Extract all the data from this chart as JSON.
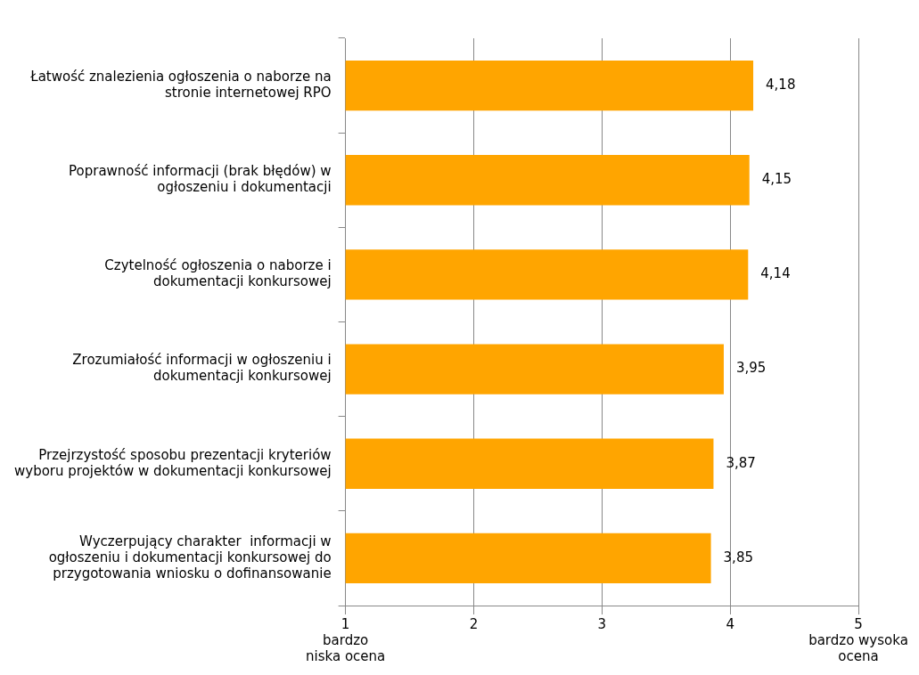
{
  "chart_data": {
    "type": "bar",
    "orientation": "horizontal",
    "categories": [
      "Łatwość znalezienia ogłoszenia o naborze na stronie internetowej RPO",
      "Poprawność informacji (brak błędów) w ogłoszeniu i dokumentacji",
      "Czytelność ogłoszenia o naborze i dokumentacji konkursowej",
      "Zrozumiałość informacji w ogłoszeniu i dokumentacji konkursowej",
      "Przejrzystość sposobu prezentacji kryteriów wyboru projektów w dokumentacji konkursowej",
      "Wyczerpujący charakter  informacji w ogłoszeniu i dokumentacji konkursowej do przygotowania wniosku o dofinansowanie"
    ],
    "values": [
      4.18,
      4.15,
      4.14,
      3.95,
      3.87,
      3.85
    ],
    "value_labels": [
      "4,18",
      "4,15",
      "4,14",
      "3,95",
      "3,87",
      "3,85"
    ],
    "color": "#ffa500",
    "xlim": [
      1,
      5
    ],
    "xticks": [
      {
        "value": 1,
        "label": "1\nbardzo\nniska ocena"
      },
      2,
      3,
      4,
      {
        "value": 5,
        "label": "5\nbardzo wysoka\nocena"
      }
    ],
    "grid": "x",
    "legend": false
  }
}
